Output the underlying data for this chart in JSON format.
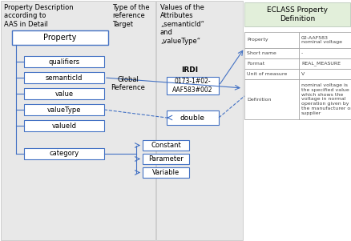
{
  "white": "#ffffff",
  "blue": "#4472c4",
  "light_green": "#e2efda",
  "panel_bg": "#e8e8e8",
  "col1_header": "Property Description\naccording to\nAAS in Detail",
  "col2_header": "Type of the\nreference\nTarget",
  "col3_header": "Values of the\nAttributes\n„semanticId“\nand\n„valueType“",
  "col4_header": "ECLASS Property\nDefinition",
  "col2_sub": "Global\nReference",
  "col3_irdi_label": "IRDI",
  "col3_irdi_val": "0173-1#02-\nAAF583#002",
  "col3_double": "double",
  "property_label": "Property",
  "property_items": [
    "qualifiers",
    "semanticId",
    "value",
    "valueType",
    "valueId",
    "category"
  ],
  "category_items": [
    "Constant",
    "Parameter",
    "Variable"
  ],
  "eclass_table": [
    [
      "Property",
      "02-AAF583\nnominal voltage"
    ],
    [
      "Short name",
      "-"
    ],
    [
      "Format",
      "REAL_MEASURE"
    ],
    [
      "Unit of measure",
      "V"
    ],
    [
      "Definition",
      "nominal voltage is\nthe specified value\nwhich shows the\nvoltage in normal\noperation given by\nthe manufacturer or\nsupplier"
    ]
  ]
}
